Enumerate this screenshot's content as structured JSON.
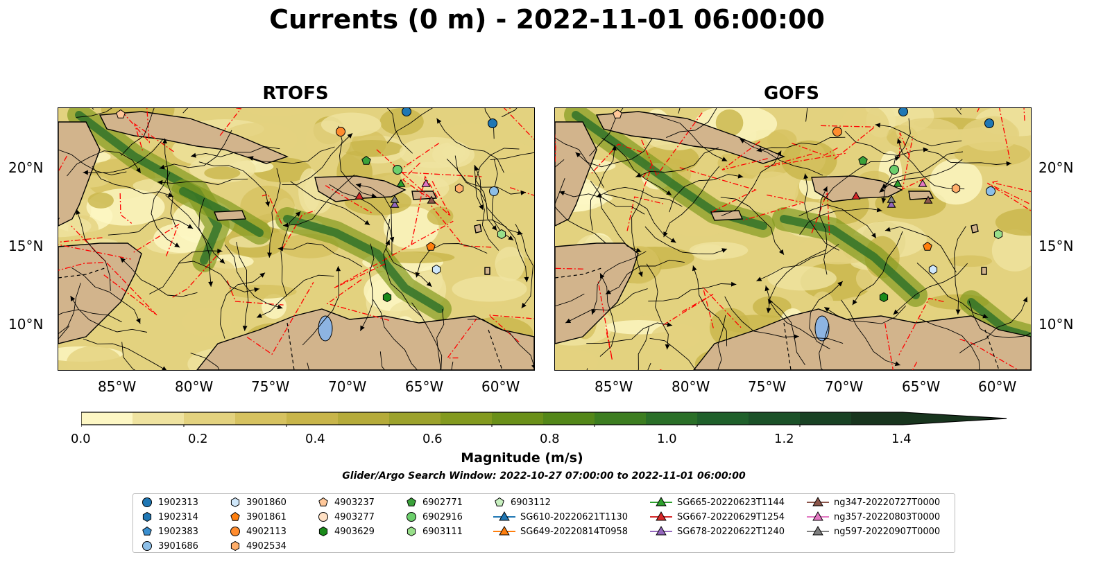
{
  "title": "Currents (0 m) - 2022-11-01 06:00:00",
  "panels": [
    {
      "title": "RTOFS"
    },
    {
      "title": "GOFS"
    }
  ],
  "lon_labels": [
    "85°W",
    "80°W",
    "75°W",
    "70°W",
    "65°W",
    "60°W"
  ],
  "lat_labels": [
    "20°N",
    "15°N",
    "10°N"
  ],
  "colorbar": {
    "label": "Magnitude (m/s)",
    "ticks": [
      "0.0",
      "0.2",
      "0.4",
      "0.6",
      "0.8",
      "1.0",
      "1.2",
      "1.4"
    ],
    "range": [
      0.0,
      1.6
    ],
    "extend": "max",
    "colors": [
      "#fdf7c4",
      "#efe3a0",
      "#e3d27f",
      "#d6c260",
      "#c8b54a",
      "#b5ab3a",
      "#9ca22c",
      "#839a1f",
      "#6a9019",
      "#538719",
      "#3c7d20",
      "#2a6f28",
      "#1f602b",
      "#1b5128",
      "#194224",
      "#18351e"
    ]
  },
  "search_window": "Glider/Argo Search Window: 2022-10-27 07:00:00 to 2022-11-01 06:00:00",
  "legend": {
    "columns": [
      [
        {
          "label": "1902313",
          "marker": "circle",
          "color": "#1f77b4"
        },
        {
          "label": "1902314",
          "marker": "hexagon",
          "color": "#1f77b4"
        },
        {
          "label": "1902383",
          "marker": "pentagon",
          "color": "#3a8fd0"
        },
        {
          "label": "3901686",
          "marker": "circle",
          "color": "#8dbfe8"
        }
      ],
      [
        {
          "label": "3901860",
          "marker": "hexagon",
          "color": "#cfe7fa"
        },
        {
          "label": "3901861",
          "marker": "pentagon",
          "color": "#ff7f0e"
        },
        {
          "label": "4902113",
          "marker": "circle",
          "color": "#ff8c2e"
        },
        {
          "label": "4902534",
          "marker": "hexagon",
          "color": "#ffae6a"
        }
      ],
      [
        {
          "label": "4903237",
          "marker": "pentagon",
          "color": "#ffc89a"
        },
        {
          "label": "4903277",
          "marker": "circle",
          "color": "#ffe0c4"
        },
        {
          "label": "4903629",
          "marker": "hexagon",
          "color": "#1a8a1a"
        }
      ],
      [
        {
          "label": "6902771",
          "marker": "pentagon",
          "color": "#3aa13a"
        },
        {
          "label": "6902916",
          "marker": "circle",
          "color": "#6ccf6c"
        },
        {
          "label": "6903111",
          "marker": "hexagon",
          "color": "#98df8a"
        }
      ],
      [
        {
          "label": "6903112",
          "marker": "pentagon",
          "color": "#c8f0c0"
        },
        {
          "label": "SG610-20220621T1130",
          "marker": "triangle-line",
          "color": "#1f77b4"
        },
        {
          "label": "SG649-20220814T0958",
          "marker": "triangle-line",
          "color": "#ff7f0e"
        }
      ],
      [
        {
          "label": "SG665-20220623T1144",
          "marker": "triangle-line",
          "color": "#2ca02c"
        },
        {
          "label": "SG667-20220629T1254",
          "marker": "triangle-line",
          "color": "#d62728"
        },
        {
          "label": "SG678-20220622T1240",
          "marker": "triangle-line",
          "color": "#9467bd"
        }
      ],
      [
        {
          "label": "ng347-20220727T0000",
          "marker": "triangle-line",
          "color": "#8c564b"
        },
        {
          "label": "ng357-20220803T0000",
          "marker": "triangle-line",
          "color": "#e377c2"
        },
        {
          "label": "ng597-20220907T0000",
          "marker": "triangle-line",
          "color": "#7f7f7f"
        }
      ]
    ]
  }
}
